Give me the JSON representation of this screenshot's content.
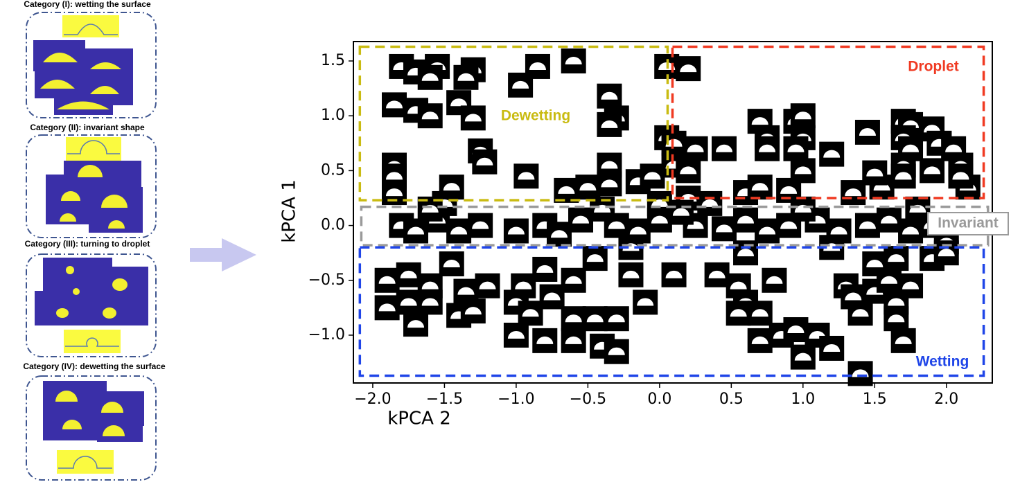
{
  "panels": [
    {
      "title": "Category (I): wetting the surface"
    },
    {
      "title": "Category (II): invariant shape"
    },
    {
      "title": "Category (III): turning to droplet"
    },
    {
      "title": "Category (IV): dewetting the surface"
    }
  ],
  "chart_data": {
    "type": "scatter",
    "xlabel": "kPCA 2",
    "ylabel": "kPCA 1",
    "xlim": [
      -2.135,
      2.32
    ],
    "ylim": [
      -1.436,
      1.677
    ],
    "xticks": [
      {
        "value": -2.0,
        "label": "−2.0"
      },
      {
        "value": -1.5,
        "label": "−1.5"
      },
      {
        "value": -1.0,
        "label": "−1.0"
      },
      {
        "value": -0.5,
        "label": "−0.5"
      },
      {
        "value": 0.0,
        "label": "0.0"
      },
      0.5,
      {
        "value": 1.0,
        "label": "1.0"
      },
      1.5,
      {
        "value": 2.0,
        "label": "2.0"
      }
    ],
    "yticks": [
      {
        "value": -1.0,
        "label": "−1.0"
      },
      {
        "value": -0.5,
        "label": "−0.5"
      },
      {
        "value": 0.0,
        "label": "0.0"
      },
      0.5,
      {
        "value": 1.0,
        "label": "1.0"
      },
      1.5
    ],
    "color": "#000000",
    "x": [
      -1.8,
      -1.7,
      -1.55,
      -1.6,
      -1.3,
      -1.35,
      -0.85,
      -0.97,
      -0.6,
      0.05,
      0.2,
      -1.85,
      -1.7,
      -1.6,
      -1.4,
      -1.3,
      -0.35,
      -0.3,
      -0.35,
      -1.85,
      -1.85,
      -1.85,
      -1.25,
      -1.22,
      -0.93,
      -0.65,
      -0.5,
      -0.35,
      -0.35,
      -0.15,
      -0.05,
      0.05,
      0.1,
      0.25,
      0.45,
      0.1,
      0.2,
      -1.45,
      -1.5,
      0.0,
      0.2,
      0.35,
      0.6,
      0.7,
      0.9,
      1.0,
      0.95,
      1.0,
      0.7,
      0.75,
      1.0,
      0.75,
      0.95,
      1.2,
      1.45,
      1.35,
      1.55,
      1.5,
      1.7,
      1.75,
      1.7,
      1.75,
      1.7,
      1.7,
      1.9,
      1.95,
      2.05,
      2.1,
      2.15,
      2.1,
      1.9,
      -1.8,
      -1.7,
      -1.55,
      -1.4,
      -1.25,
      -1.0,
      -0.8,
      -0.7,
      -0.55,
      -0.3,
      -0.15,
      0.0,
      0.25,
      0.45,
      0.6,
      0.75,
      0.9,
      1.1,
      1.25,
      1.45,
      1.6,
      1.75,
      1.9,
      2.0,
      -1.6,
      -0.4,
      0.15,
      1.0,
      1.8,
      -1.9,
      -1.75,
      -1.6,
      -1.45,
      -1.35,
      -1.2,
      -0.95,
      -0.8,
      -0.6,
      -0.45,
      -0.2,
      0.1,
      -1.9,
      -1.75,
      -1.6,
      -1.4,
      -1.3,
      -1.0,
      -0.9,
      -0.75,
      -0.6,
      -0.45,
      -0.3,
      -0.1,
      -1.7,
      -1.0,
      -0.8,
      -0.6,
      -0.4,
      -0.3,
      0.4,
      0.55,
      0.6,
      0.8,
      0.55,
      0.7,
      0.7,
      0.85,
      0.95,
      1.0,
      1.1,
      1.2,
      1.4,
      1.3,
      1.35,
      1.4,
      1.5,
      1.6,
      1.65,
      1.65,
      1.75,
      1.7,
      1.5,
      1.65,
      1.9,
      2.0,
      1.2,
      0.6,
      -0.2
    ],
    "y": [
      1.45,
      1.4,
      1.45,
      1.35,
      1.42,
      1.35,
      1.45,
      1.28,
      1.5,
      1.45,
      1.43,
      1.1,
      1.05,
      1.0,
      1.12,
      0.98,
      1.18,
      0.98,
      0.92,
      0.55,
      0.45,
      0.3,
      0.68,
      0.58,
      0.45,
      0.32,
      0.35,
      0.55,
      0.38,
      0.4,
      0.45,
      0.8,
      0.75,
      0.7,
      0.7,
      0.55,
      0.5,
      0.35,
      0.2,
      0.2,
      0.25,
      0.2,
      0.3,
      0.35,
      0.32,
      0.5,
      0.95,
      1.0,
      0.95,
      0.8,
      0.8,
      0.7,
      0.7,
      0.65,
      0.85,
      0.3,
      0.35,
      0.48,
      0.95,
      0.92,
      0.8,
      0.7,
      0.55,
      0.45,
      0.88,
      0.75,
      0.7,
      0.55,
      0.35,
      0.45,
      0.5,
      0.0,
      -0.05,
      0.05,
      -0.05,
      0.0,
      -0.05,
      0.0,
      -0.08,
      0.05,
      0.0,
      -0.05,
      0.05,
      0.0,
      -0.03,
      0.05,
      -0.05,
      0.0,
      0.05,
      -0.05,
      0.0,
      0.05,
      -0.05,
      0.0,
      -0.15,
      0.15,
      0.15,
      0.12,
      0.15,
      0.15,
      -0.5,
      -0.45,
      -0.55,
      -0.35,
      -0.6,
      -0.55,
      -0.55,
      -0.4,
      -0.5,
      -0.3,
      -0.45,
      -0.45,
      -0.75,
      -0.7,
      -0.7,
      -0.82,
      -0.78,
      -0.7,
      -0.8,
      -0.65,
      -0.85,
      -0.85,
      -0.85,
      -0.7,
      -0.9,
      -1.0,
      -1.05,
      -1.05,
      -1.1,
      -1.15,
      -0.45,
      -0.55,
      -0.7,
      -0.5,
      -0.8,
      -0.8,
      -1.05,
      -1.0,
      -0.95,
      -1.2,
      -1.0,
      -1.12,
      -1.35,
      -0.55,
      -0.65,
      -0.8,
      -0.6,
      -0.5,
      -0.7,
      -0.85,
      -0.55,
      -1.05,
      -0.35,
      -0.3,
      -0.3,
      -0.25,
      -0.2,
      -0.25,
      -0.2
    ],
    "regions": [
      {
        "label": "Dewetting",
        "color": "#c9bb12",
        "x": [
          -2.09,
          0.056
        ],
        "y": [
          0.23,
          1.63
        ]
      },
      {
        "label": "Droplet",
        "color": "#f03a22",
        "x": [
          0.09,
          2.26
        ],
        "y": [
          0.25,
          1.63
        ]
      },
      {
        "label": "Invariant",
        "color": "#9a9a9a",
        "x": [
          -2.08,
          2.29
        ],
        "y": [
          -0.18,
          0.17
        ]
      },
      {
        "label": "Wetting",
        "color": "#1f45e8",
        "x": [
          -2.09,
          2.26
        ],
        "y": [
          -1.37,
          -0.2
        ]
      }
    ]
  }
}
